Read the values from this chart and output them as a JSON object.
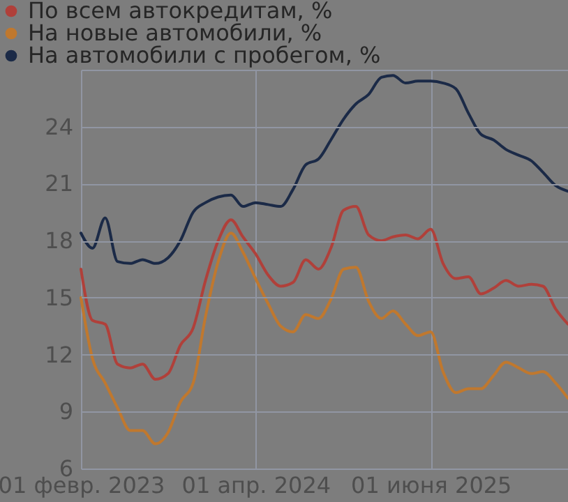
{
  "chart_data": {
    "type": "line",
    "x": [
      "2023-02",
      "2023-03",
      "2023-04",
      "2023-05",
      "2023-06",
      "2023-07",
      "2023-08",
      "2023-09",
      "2023-10",
      "2023-11",
      "2023-12",
      "2024-01",
      "2024-02",
      "2024-03",
      "2024-04",
      "2024-05",
      "2024-06",
      "2024-07",
      "2024-08",
      "2024-09",
      "2024-10",
      "2024-11",
      "2024-12",
      "2025-01",
      "2025-02",
      "2025-03",
      "2025-04",
      "2025-05",
      "2025-06",
      "2025-07",
      "2025-08",
      "2025-09",
      "2025-10",
      "2025-11",
      "2025-12",
      "2026-01",
      "2026-02",
      "2026-03",
      "2026-04",
      "2026-05"
    ],
    "series": [
      {
        "name": "По всем автокредитам, %",
        "color": "#b0403a",
        "values": [
          16.5,
          13.8,
          13.6,
          11.5,
          11.3,
          11.5,
          10.7,
          11.0,
          12.5,
          13.4,
          15.9,
          18.0,
          19.1,
          18.2,
          17.3,
          16.2,
          15.6,
          15.8,
          17.0,
          16.5,
          17.6,
          19.6,
          19.8,
          18.3,
          18.0,
          18.2,
          18.3,
          18.1,
          18.6,
          16.8,
          16.0,
          16.1,
          15.2,
          15.5,
          15.9,
          15.6,
          15.7,
          15.6,
          14.4,
          13.6
        ]
      },
      {
        "name": "На новые автомобили, %",
        "color": "#c0782e",
        "values": [
          15.0,
          11.8,
          10.5,
          9.2,
          8.0,
          8.0,
          7.3,
          7.9,
          9.5,
          10.5,
          14.0,
          16.9,
          18.4,
          17.4,
          16.0,
          14.7,
          13.5,
          13.2,
          14.1,
          13.9,
          14.9,
          16.5,
          16.6,
          14.8,
          13.9,
          14.3,
          13.6,
          13.0,
          13.2,
          11.1,
          10.0,
          10.2,
          10.2,
          10.9,
          11.6,
          11.3,
          11.0,
          11.1,
          10.5,
          9.7
        ]
      },
      {
        "name": "На автомобили с пробегом, %",
        "color": "#1b2a47",
        "values": [
          18.4,
          17.6,
          19.2,
          16.9,
          16.8,
          17.0,
          16.8,
          17.1,
          18.0,
          19.5,
          20.0,
          20.3,
          20.4,
          19.8,
          20.0,
          19.9,
          19.8,
          20.7,
          22.0,
          22.3,
          23.3,
          24.4,
          25.2,
          25.7,
          26.6,
          26.7,
          26.3,
          26.4,
          26.4,
          26.3,
          26.0,
          24.7,
          23.6,
          23.3,
          22.8,
          22.5,
          22.2,
          21.6,
          20.9,
          20.6
        ]
      }
    ],
    "xlim": [
      "2023-02-01",
      "2026-05-01"
    ],
    "xticks": [
      {
        "value": "2023-02-01",
        "label": "01 февр. 2023"
      },
      {
        "value": "2024-04-01",
        "label": "01 апр. 2024"
      },
      {
        "value": "2025-06-01",
        "label": "01 июня 2025"
      }
    ],
    "ylim": [
      6,
      27
    ],
    "yticks": [
      6,
      9,
      12,
      15,
      18,
      21,
      24,
      {
        "value": 27,
        "label": null
      }
    ],
    "grid": true,
    "legend": "top left"
  }
}
